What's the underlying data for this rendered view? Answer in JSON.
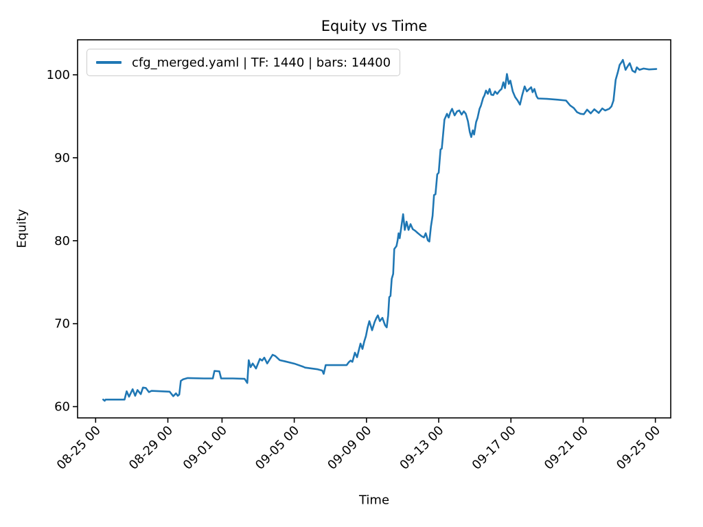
{
  "figure": {
    "background": "#ffffff",
    "title": "Equity vs Time",
    "xlabel": "Time",
    "ylabel": "Equity"
  },
  "legend": {
    "label": "cfg_merged.yaml | TF: 1440 | bars: 14400",
    "swatch_color": "#1f77b4"
  },
  "chart_data": {
    "type": "line",
    "title": "Equity vs Time",
    "xlabel": "Time",
    "ylabel": "Equity",
    "grid": false,
    "legend_position": "upper left",
    "line_color": "#1f77b4",
    "x_unit_note": "x encoded as day offset; tick labels below are the dates shown on the axis",
    "xlim": [
      0,
      32.85
    ],
    "ylim": [
      58.64,
      104.22
    ],
    "x_ticks": [
      {
        "pos": 1,
        "label": "08-25 00"
      },
      {
        "pos": 5,
        "label": "08-29 00"
      },
      {
        "pos": 8,
        "label": "09-01 00"
      },
      {
        "pos": 12,
        "label": "09-05 00"
      },
      {
        "pos": 16,
        "label": "09-09 00"
      },
      {
        "pos": 20,
        "label": "09-13 00"
      },
      {
        "pos": 24,
        "label": "09-17 00"
      },
      {
        "pos": 28,
        "label": "09-21 00"
      },
      {
        "pos": 32,
        "label": "09-25 00"
      }
    ],
    "y_ticks": [
      {
        "pos": 60,
        "label": "60"
      },
      {
        "pos": 70,
        "label": "70"
      },
      {
        "pos": 80,
        "label": "80"
      },
      {
        "pos": 90,
        "label": "90"
      },
      {
        "pos": 100,
        "label": "100"
      }
    ],
    "series": [
      {
        "name": "cfg_merged.yaml | TF: 1440 | bars: 14400",
        "color": "#1f77b4",
        "points": [
          [
            1.42,
            60.85
          ],
          [
            1.5,
            60.7
          ],
          [
            1.55,
            60.85
          ],
          [
            2.6,
            60.85
          ],
          [
            2.72,
            61.85
          ],
          [
            2.85,
            61.2
          ],
          [
            3.05,
            62.1
          ],
          [
            3.19,
            61.3
          ],
          [
            3.32,
            62.0
          ],
          [
            3.5,
            61.5
          ],
          [
            3.62,
            62.3
          ],
          [
            3.78,
            62.25
          ],
          [
            3.95,
            61.75
          ],
          [
            4.1,
            61.9
          ],
          [
            5.1,
            61.8
          ],
          [
            5.3,
            61.25
          ],
          [
            5.45,
            61.6
          ],
          [
            5.55,
            61.3
          ],
          [
            5.63,
            61.45
          ],
          [
            5.72,
            63.1
          ],
          [
            5.85,
            63.3
          ],
          [
            6.1,
            63.45
          ],
          [
            7.0,
            63.4
          ],
          [
            7.49,
            63.4
          ],
          [
            7.58,
            64.3
          ],
          [
            7.85,
            64.25
          ],
          [
            7.95,
            63.4
          ],
          [
            8.6,
            63.4
          ],
          [
            9.25,
            63.35
          ],
          [
            9.4,
            62.85
          ],
          [
            9.48,
            65.6
          ],
          [
            9.58,
            64.75
          ],
          [
            9.7,
            65.2
          ],
          [
            9.88,
            64.6
          ],
          [
            10.1,
            65.75
          ],
          [
            10.22,
            65.55
          ],
          [
            10.34,
            65.9
          ],
          [
            10.5,
            65.2
          ],
          [
            10.8,
            66.25
          ],
          [
            10.95,
            66.1
          ],
          [
            11.2,
            65.6
          ],
          [
            11.5,
            65.45
          ],
          [
            12.05,
            65.15
          ],
          [
            12.5,
            64.8
          ],
          [
            12.6,
            64.7
          ],
          [
            13.3,
            64.5
          ],
          [
            13.55,
            64.35
          ],
          [
            13.63,
            63.95
          ],
          [
            13.74,
            65.0
          ],
          [
            14.9,
            65.0
          ],
          [
            15.02,
            65.35
          ],
          [
            15.12,
            65.55
          ],
          [
            15.22,
            65.4
          ],
          [
            15.36,
            66.5
          ],
          [
            15.48,
            65.95
          ],
          [
            15.67,
            67.6
          ],
          [
            15.78,
            66.95
          ],
          [
            15.88,
            67.9
          ],
          [
            15.97,
            68.5
          ],
          [
            16.06,
            69.5
          ],
          [
            16.16,
            70.3
          ],
          [
            16.31,
            69.2
          ],
          [
            16.45,
            70.2
          ],
          [
            16.55,
            70.7
          ],
          [
            16.63,
            71.0
          ],
          [
            16.74,
            70.3
          ],
          [
            16.88,
            70.7
          ],
          [
            17.03,
            69.8
          ],
          [
            17.12,
            69.55
          ],
          [
            17.2,
            71.0
          ],
          [
            17.26,
            73.2
          ],
          [
            17.33,
            73.35
          ],
          [
            17.4,
            75.4
          ],
          [
            17.48,
            76.0
          ],
          [
            17.54,
            79.0
          ],
          [
            17.66,
            79.35
          ],
          [
            17.72,
            80.0
          ],
          [
            17.78,
            80.9
          ],
          [
            17.84,
            80.3
          ],
          [
            17.92,
            81.5
          ],
          [
            18.03,
            83.2
          ],
          [
            18.12,
            81.3
          ],
          [
            18.22,
            82.3
          ],
          [
            18.33,
            81.3
          ],
          [
            18.44,
            82.0
          ],
          [
            18.56,
            81.4
          ],
          [
            18.7,
            81.2
          ],
          [
            18.85,
            80.9
          ],
          [
            19.05,
            80.55
          ],
          [
            19.18,
            80.4
          ],
          [
            19.28,
            80.9
          ],
          [
            19.4,
            80.05
          ],
          [
            19.48,
            79.9
          ],
          [
            19.57,
            81.7
          ],
          [
            19.66,
            83.0
          ],
          [
            19.74,
            85.5
          ],
          [
            19.82,
            85.6
          ],
          [
            19.92,
            88.0
          ],
          [
            20.0,
            88.2
          ],
          [
            20.1,
            91.0
          ],
          [
            20.17,
            91.1
          ],
          [
            20.24,
            92.7
          ],
          [
            20.32,
            94.6
          ],
          [
            20.4,
            95.0
          ],
          [
            20.46,
            95.3
          ],
          [
            20.55,
            94.85
          ],
          [
            20.65,
            95.5
          ],
          [
            20.74,
            95.9
          ],
          [
            20.88,
            95.1
          ],
          [
            21.02,
            95.6
          ],
          [
            21.14,
            95.7
          ],
          [
            21.27,
            95.2
          ],
          [
            21.39,
            95.6
          ],
          [
            21.5,
            95.3
          ],
          [
            21.62,
            94.4
          ],
          [
            21.72,
            93.1
          ],
          [
            21.8,
            92.5
          ],
          [
            21.89,
            93.3
          ],
          [
            21.96,
            92.8
          ],
          [
            22.07,
            94.3
          ],
          [
            22.15,
            94.8
          ],
          [
            22.26,
            95.9
          ],
          [
            22.34,
            96.3
          ],
          [
            22.46,
            97.2
          ],
          [
            22.53,
            97.5
          ],
          [
            22.62,
            98.1
          ],
          [
            22.72,
            97.7
          ],
          [
            22.82,
            98.3
          ],
          [
            22.91,
            97.6
          ],
          [
            23.02,
            97.55
          ],
          [
            23.12,
            98.0
          ],
          [
            23.24,
            97.7
          ],
          [
            23.38,
            98.1
          ],
          [
            23.48,
            98.3
          ],
          [
            23.58,
            99.1
          ],
          [
            23.67,
            98.4
          ],
          [
            23.78,
            100.1
          ],
          [
            23.88,
            98.9
          ],
          [
            23.97,
            99.3
          ],
          [
            24.1,
            98.0
          ],
          [
            24.24,
            97.3
          ],
          [
            24.37,
            96.9
          ],
          [
            24.5,
            96.4
          ],
          [
            24.62,
            97.5
          ],
          [
            24.76,
            98.6
          ],
          [
            24.88,
            98.0
          ],
          [
            25.02,
            98.3
          ],
          [
            25.12,
            98.5
          ],
          [
            25.2,
            97.9
          ],
          [
            25.3,
            98.3
          ],
          [
            25.42,
            97.4
          ],
          [
            25.5,
            97.15
          ],
          [
            26.0,
            97.1
          ],
          [
            26.6,
            97.0
          ],
          [
            27.05,
            96.9
          ],
          [
            27.28,
            96.3
          ],
          [
            27.48,
            96.0
          ],
          [
            27.66,
            95.5
          ],
          [
            27.85,
            95.3
          ],
          [
            28.04,
            95.25
          ],
          [
            28.22,
            95.8
          ],
          [
            28.42,
            95.35
          ],
          [
            28.62,
            95.85
          ],
          [
            28.86,
            95.4
          ],
          [
            29.06,
            95.95
          ],
          [
            29.22,
            95.7
          ],
          [
            29.44,
            95.9
          ],
          [
            29.57,
            96.2
          ],
          [
            29.68,
            96.9
          ],
          [
            29.8,
            99.4
          ],
          [
            29.92,
            100.3
          ],
          [
            30.02,
            101.2
          ],
          [
            30.12,
            101.5
          ],
          [
            30.2,
            101.8
          ],
          [
            30.35,
            100.6
          ],
          [
            30.46,
            101.0
          ],
          [
            30.58,
            101.4
          ],
          [
            30.73,
            100.5
          ],
          [
            30.88,
            100.3
          ],
          [
            30.97,
            100.9
          ],
          [
            31.12,
            100.6
          ],
          [
            31.35,
            100.75
          ],
          [
            31.65,
            100.65
          ],
          [
            32.05,
            100.7
          ]
        ]
      }
    ]
  }
}
